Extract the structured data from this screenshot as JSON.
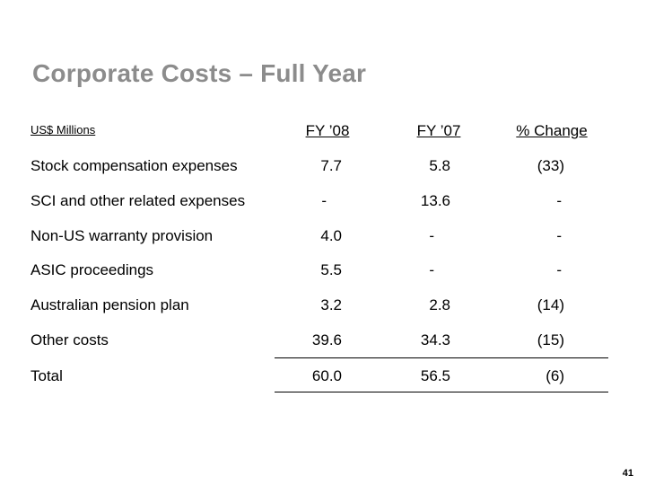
{
  "title": "Corporate Costs – Full Year",
  "table": {
    "units_label": "US$ Millions",
    "columns": [
      "FY ’08",
      "FY ’07",
      "% Change"
    ],
    "rows": [
      {
        "label": "Stock compensation expenses",
        "fy08": "7.7",
        "fy07": "5.8",
        "change": "(33)"
      },
      {
        "label": "SCI and other related expenses",
        "fy08": "-",
        "fy07": "13.6",
        "change": "-"
      },
      {
        "label": "Non-US warranty provision",
        "fy08": "4.0",
        "fy07": "-",
        "change": "-"
      },
      {
        "label": "ASIC proceedings",
        "fy08": "5.5",
        "fy07": "-",
        "change": "-"
      },
      {
        "label": "Australian pension plan",
        "fy08": "3.2",
        "fy07": "2.8",
        "change": "(14)"
      },
      {
        "label": "Other costs",
        "fy08": "39.6",
        "fy07": "34.3",
        "change": "(15)"
      },
      {
        "label": "Total",
        "fy08": "60.0",
        "fy07": "56.5",
        "change": "(6)"
      }
    ]
  },
  "page_number": "41"
}
